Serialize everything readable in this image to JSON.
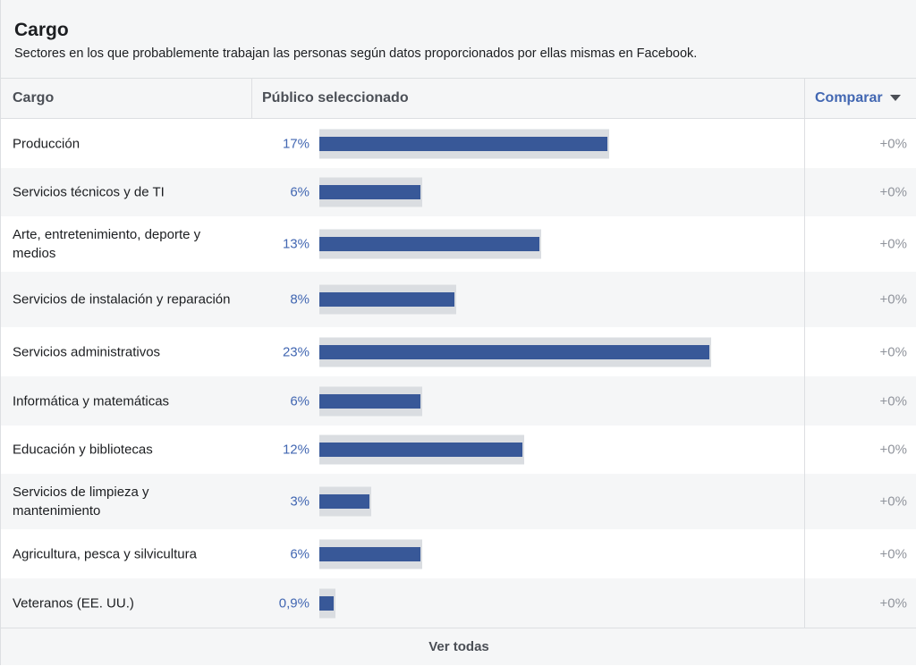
{
  "header": {
    "title": "Cargo",
    "subtitle": "Sectores en los que probablemente trabajan las personas según datos proporcionados por ellas mismas en Facebook."
  },
  "columns": {
    "category": "Cargo",
    "audience": "Público seleccionado",
    "compare": "Comparar"
  },
  "rows": [
    {
      "label": "Producción",
      "pct": "17%",
      "value": 17,
      "delta": "+0%"
    },
    {
      "label": "Servicios técnicos y de TI",
      "pct": "6%",
      "value": 6,
      "delta": "+0%"
    },
    {
      "label": "Arte, entretenimiento, deporte y medios",
      "pct": "13%",
      "value": 13,
      "delta": "+0%"
    },
    {
      "label": "Servicios de instalación y reparación",
      "pct": "8%",
      "value": 8,
      "delta": "+0%"
    },
    {
      "label": "Servicios administrativos",
      "pct": "23%",
      "value": 23,
      "delta": "+0%"
    },
    {
      "label": "Informática y matemáticas",
      "pct": "6%",
      "value": 6,
      "delta": "+0%"
    },
    {
      "label": "Educación y bibliotecas",
      "pct": "12%",
      "value": 12,
      "delta": "+0%"
    },
    {
      "label": "Servicios de limpieza y mantenimiento",
      "pct": "3%",
      "value": 3,
      "delta": "+0%"
    },
    {
      "label": "Agricultura, pesca y silvicultura",
      "pct": "6%",
      "value": 6,
      "delta": "+0%"
    },
    {
      "label": "Veteranos (EE. UU.)",
      "pct": "0,9%",
      "value": 0.9,
      "delta": "+0%"
    }
  ],
  "footer": {
    "see_all": "Ver todas"
  },
  "colors": {
    "bar": "#385898",
    "bar_bg": "#dadde1",
    "accent": "#4267b2"
  }
}
